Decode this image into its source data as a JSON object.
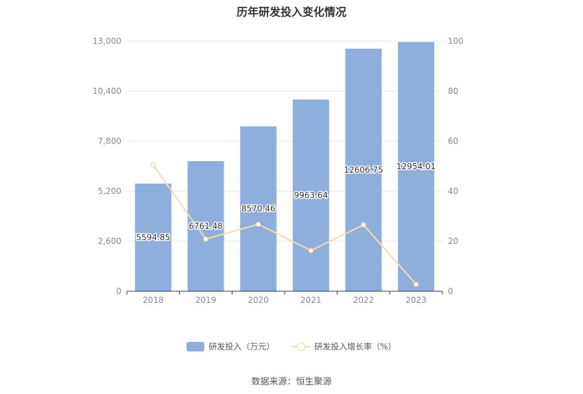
{
  "chart_data": {
    "type": "bar",
    "title": "历年研发投入变化情况",
    "categories": [
      "2018",
      "2019",
      "2020",
      "2021",
      "2022",
      "2023"
    ],
    "series": [
      {
        "name": "研发投入（万元）",
        "type": "bar",
        "axis": "left",
        "values": [
          5594.85,
          6761.48,
          8570.46,
          9963.64,
          12606.75,
          12954.01
        ],
        "labels": [
          "5594.85",
          "6761.48",
          "8570.46",
          "9963.64",
          "12606.75",
          "12954.01"
        ]
      },
      {
        "name": "研发投入增长率（%）",
        "type": "line",
        "axis": "right",
        "values": [
          50.5,
          20.85,
          26.75,
          16.26,
          26.53,
          2.75
        ]
      }
    ],
    "y_left": {
      "range": [
        0,
        13000
      ],
      "ticks": [
        "0",
        "2,600",
        "5,200",
        "7,800",
        "10,400",
        "13,000"
      ]
    },
    "y_right": {
      "range": [
        0,
        100
      ],
      "ticks": [
        "0",
        "20",
        "40",
        "60",
        "80",
        "100"
      ]
    },
    "grid": true,
    "legend_position": "bottom-center",
    "colors": {
      "bar": "#8eaedc",
      "line": "#f5dca8",
      "grid": "#e6e6e6",
      "axis": "#333333"
    }
  },
  "footer": {
    "source": "数据来源：恒生聚源"
  }
}
